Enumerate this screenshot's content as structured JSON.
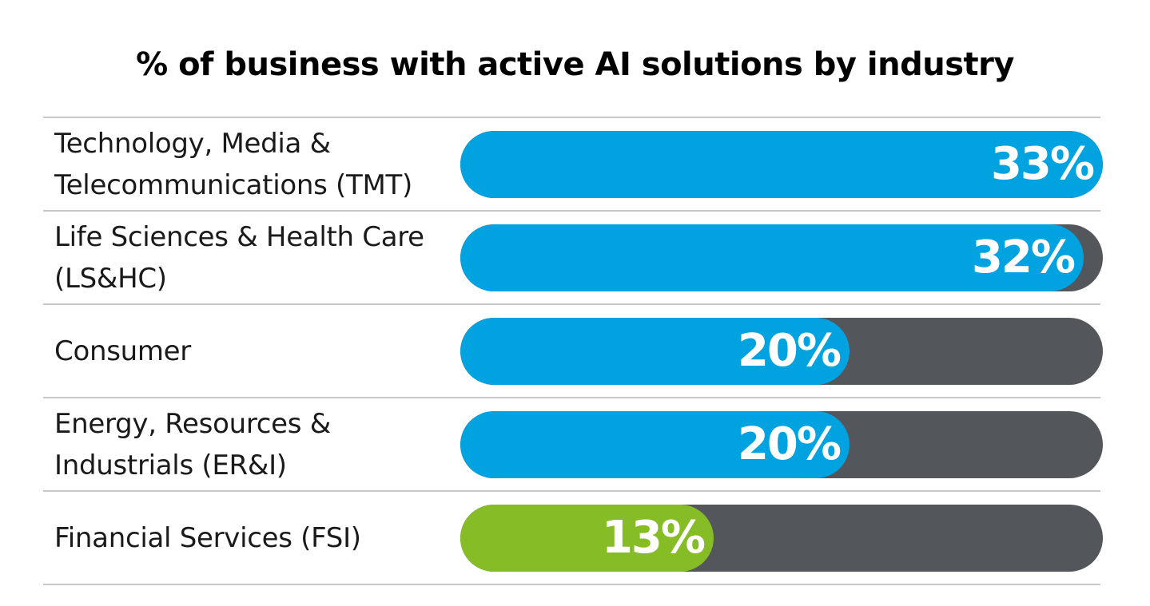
{
  "chart_data": {
    "type": "bar",
    "orientation": "horizontal",
    "title": "% of business with active AI solutions by industry",
    "categories": [
      "Technology, Media &\nTelecommunications (TMT)",
      "Life Sciences & Health Care\n(LS&HC)",
      "Consumer",
      "Energy, Resources &\nIndustrials (ER&I)",
      "Financial Services (FSI)"
    ],
    "values": [
      33,
      32,
      20,
      20,
      13
    ],
    "value_labels": [
      "33%",
      "32%",
      "20%",
      "20%",
      "13%"
    ],
    "xlim": [
      0,
      33
    ],
    "unit": "%",
    "grid": false,
    "legend": "none",
    "colors": {
      "highlight": "#00a3e0",
      "lowest": "#86bc25",
      "track": "#53565a",
      "divider": "#c8c8c8"
    },
    "bar_colors": [
      "#00a3e0",
      "#00a3e0",
      "#00a3e0",
      "#00a3e0",
      "#86bc25"
    ]
  }
}
